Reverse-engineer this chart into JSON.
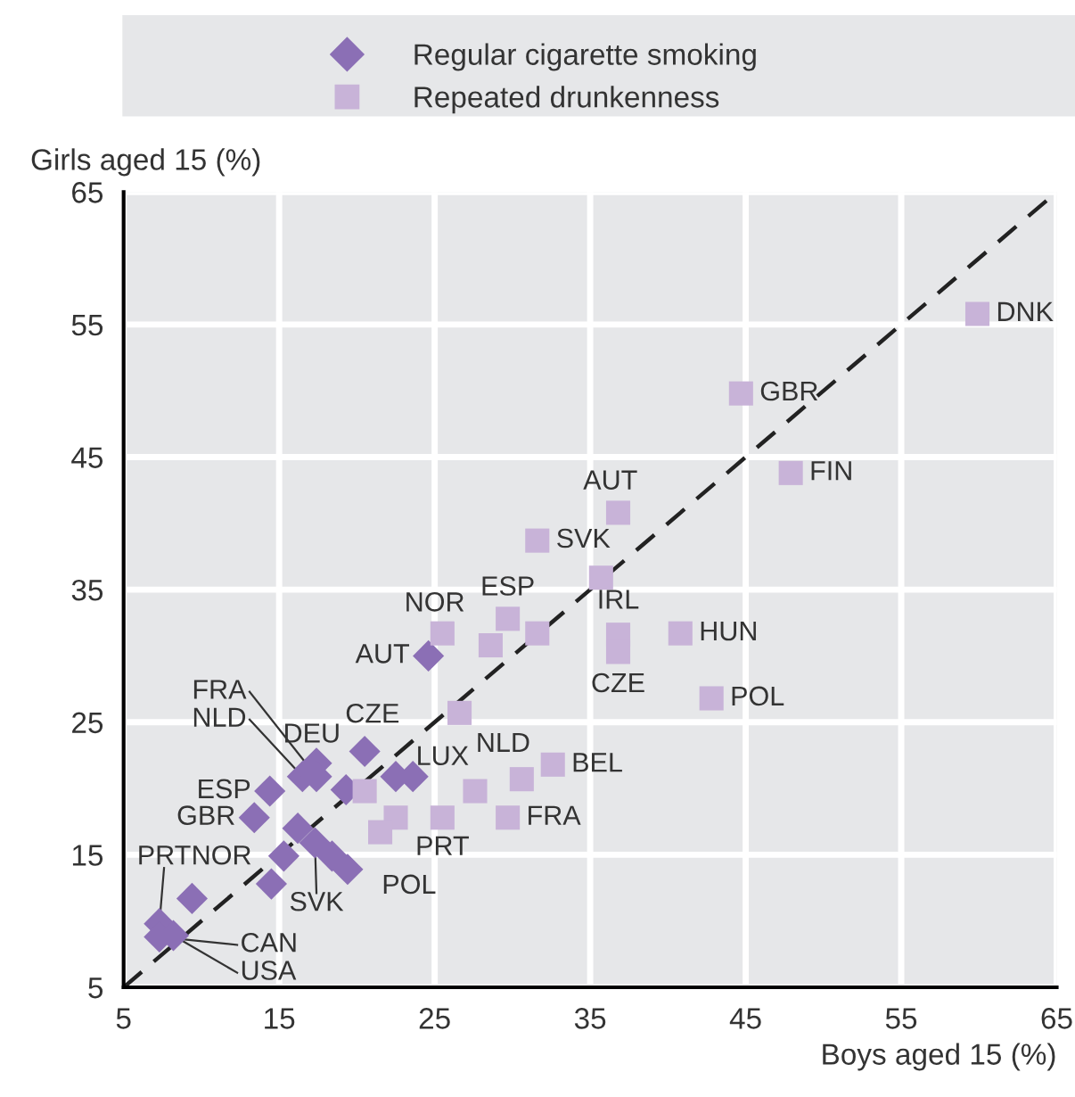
{
  "chart_data": {
    "type": "scatter",
    "xlabel": "Boys aged 15 (%)",
    "ylabel": "Girls aged 15 (%)",
    "xlim": [
      5,
      65
    ],
    "ylim": [
      5,
      65
    ],
    "xticks": [
      5,
      15,
      25,
      35,
      45,
      55,
      65
    ],
    "yticks": [
      5,
      15,
      25,
      35,
      45,
      55,
      65
    ],
    "grid": true,
    "legend": "top",
    "series": [
      {
        "name": "Regular cigarette smoking",
        "color": "#8b6fb5",
        "marker": "diamond",
        "x": [
          24.6,
          20.5,
          17.4,
          16.5,
          17.4,
          22.5,
          23.6,
          19.3,
          14.4,
          13.4,
          16.2,
          17.3,
          18.4,
          19.4,
          15.3,
          14.5,
          9.4,
          7.3,
          7.3,
          8.2
        ],
        "values": [
          30,
          22.8,
          21.9,
          20.9,
          20.9,
          20.9,
          20.9,
          19.9,
          19.8,
          17.8,
          17,
          15.9,
          14.9,
          13.9,
          14.9,
          12.8,
          11.7,
          9.8,
          8.8,
          8.9
        ]
      },
      {
        "name": "Repeated drunkenness",
        "color": "#c8b3d8",
        "marker": "square",
        "x": [
          59.9,
          44.7,
          47.9,
          36.8,
          31.6,
          35.7,
          36.8,
          36.8,
          40.8,
          42.8,
          25.5,
          29.7,
          28.6,
          31.6,
          26.6,
          27.6,
          30.6,
          32.6,
          29.7,
          25.5,
          22.5,
          21.5,
          20.5
        ],
        "values": [
          55.8,
          49.8,
          43.8,
          40.8,
          38.7,
          35.9,
          31.6,
          30.3,
          31.7,
          26.8,
          31.7,
          32.8,
          30.8,
          31.7,
          25.7,
          19.8,
          20.7,
          21.8,
          17.8,
          17.8,
          17.8,
          16.7,
          19.8
        ]
      },
      {
        "type": "line",
        "color": "#222222",
        "line_style": "dashed",
        "marker": "none",
        "x": [
          5,
          65
        ],
        "values": [
          5,
          65
        ]
      }
    ],
    "annotations": [
      {
        "text": "DNK",
        "x": 59.9,
        "y": 55.8
      },
      {
        "text": "GBR",
        "x": 44.7,
        "y": 49.8
      },
      {
        "text": "FIN",
        "x": 47.9,
        "y": 43.8
      },
      {
        "text": "AUT",
        "x": 36.8,
        "y": 40.8
      },
      {
        "text": "SVK",
        "x": 31.6,
        "y": 38.7
      },
      {
        "text": "IRL",
        "x": 36.8,
        "y": 31.6
      },
      {
        "text": "CZE",
        "x": 36.8,
        "y": 30.3
      },
      {
        "text": "HUN",
        "x": 40.8,
        "y": 31.7
      },
      {
        "text": "POL",
        "x": 42.8,
        "y": 26.8
      },
      {
        "text": "NOR",
        "x": 25.5,
        "y": 31.7
      },
      {
        "text": "ESP",
        "x": 29.7,
        "y": 32.8
      },
      {
        "text": "LUX",
        "x": 27.6,
        "y": 19.8
      },
      {
        "text": "NLD",
        "x": 30.6,
        "y": 20.7
      },
      {
        "text": "BEL",
        "x": 32.6,
        "y": 21.8
      },
      {
        "text": "FRA",
        "x": 29.7,
        "y": 17.8
      },
      {
        "text": "PRT",
        "x": 25.5,
        "y": 17.8
      },
      {
        "text": "AUT",
        "x": 24.6,
        "y": 30
      },
      {
        "text": "CZE",
        "x": 20.5,
        "y": 22.8
      },
      {
        "text": "DEU",
        "x": 17.4,
        "y": 21.9
      },
      {
        "text": "FRA",
        "x": 17.4,
        "y": 20.9
      },
      {
        "text": "NLD",
        "x": 16.5,
        "y": 20.9
      },
      {
        "text": "ESP",
        "x": 14.4,
        "y": 19.8
      },
      {
        "text": "GBR",
        "x": 13.4,
        "y": 17.8
      },
      {
        "text": "SVK",
        "x": 17.3,
        "y": 15.9
      },
      {
        "text": "POL",
        "x": 19.4,
        "y": 13.9
      },
      {
        "text": "NOR",
        "x": 9.4,
        "y": 11.7
      },
      {
        "text": "PRT",
        "x": 7.3,
        "y": 9.8
      },
      {
        "text": "CAN",
        "x": 7.3,
        "y": 8.8
      },
      {
        "text": "USA",
        "x": 8.2,
        "y": 8.9
      }
    ]
  }
}
